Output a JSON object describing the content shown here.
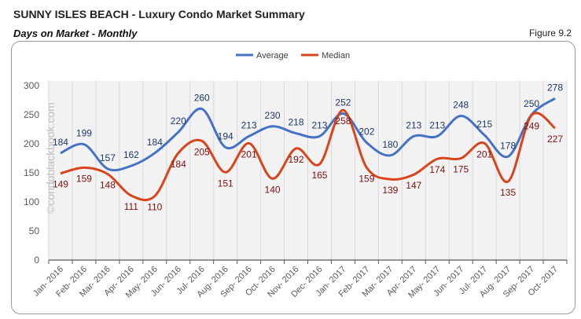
{
  "header": {
    "title": "SUNNY ISLES BEACH - Luxury Condo Market Summary",
    "subtitle": "Days on Market - Monthly",
    "figure": "Figure 9.2"
  },
  "watermark": "©condoblackbook.com",
  "chart_data": {
    "type": "line",
    "categories": [
      "Jan- 2016",
      "Feb- 2016",
      "Mar- 2016",
      "Apr- 2016",
      "May- 2016",
      "Jun- 2016",
      "Jul- 2016",
      "Aug- 2016",
      "Sep- 2016",
      "Oct- 2016",
      "Nov- 2016",
      "Dec- 2016",
      "Jan- 2017",
      "Feb- 2017",
      "Mar- 2017",
      "Apr- 2017",
      "May- 2017",
      "Jun- 2017",
      "Jul- 2017",
      "Aug- 2017",
      "Sep- 2017",
      "Oct- 2017"
    ],
    "series": [
      {
        "name": "Average",
        "color": "#4472C4",
        "label_color": "#1F3864",
        "values": [
          184,
          199,
          157,
          162,
          184,
          220,
          260,
          194,
          213,
          230,
          218,
          213,
          252,
          202,
          180,
          213,
          213,
          248,
          215,
          178,
          250,
          278
        ]
      },
      {
        "name": "Median",
        "color": "#D9441A",
        "label_color": "#7B1010",
        "values": [
          149,
          159,
          148,
          111,
          110,
          184,
          205,
          151,
          201,
          140,
          192,
          165,
          258,
          159,
          139,
          147,
          174,
          175,
          201,
          135,
          249,
          227
        ]
      }
    ],
    "ylim": [
      0,
      300
    ],
    "yticks": [
      0,
      50,
      100,
      150,
      200,
      250,
      300
    ],
    "grid": "vertical",
    "legend": "top"
  }
}
